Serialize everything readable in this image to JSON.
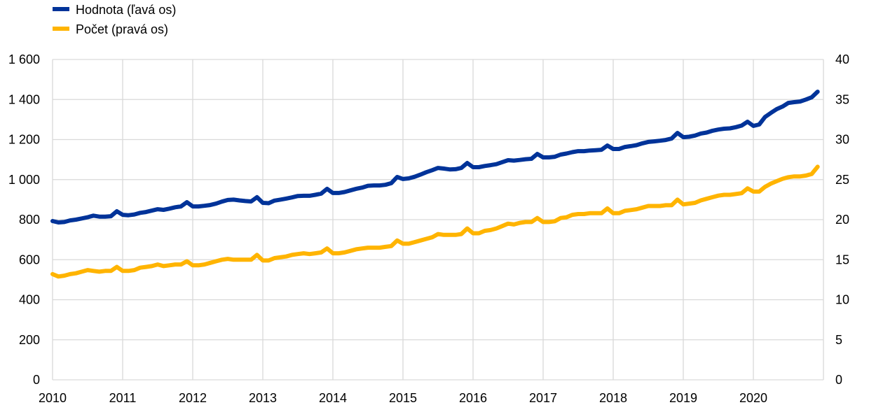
{
  "chart_data": {
    "type": "line",
    "x_start": "2010-01",
    "x_frequency": "monthly",
    "x_tick_labels": [
      "2010",
      "2011",
      "2012",
      "2013",
      "2014",
      "2015",
      "2016",
      "2017",
      "2018",
      "2019",
      "2020"
    ],
    "y_left": {
      "range": [
        0,
        1600
      ],
      "tick_labels": [
        "0",
        "200",
        "400",
        "600",
        "800",
        "1 000",
        "1 200",
        "1 400",
        "1 600"
      ],
      "tick_values": [
        0,
        200,
        400,
        600,
        800,
        1000,
        1200,
        1400,
        1600
      ]
    },
    "y_right": {
      "range": [
        0,
        40
      ],
      "tick_labels": [
        "0",
        "5",
        "10",
        "15",
        "20",
        "25",
        "30",
        "35",
        "40"
      ],
      "tick_values": [
        0,
        5,
        10,
        15,
        20,
        25,
        30,
        35,
        40
      ]
    },
    "grid": true,
    "legend_position": "top-left",
    "series": [
      {
        "name": "Hodnota (ľavá os)",
        "axis": "left",
        "color": "#003399",
        "values": [
          793,
          786,
          788,
          796,
          800,
          806,
          812,
          820,
          815,
          815,
          817,
          842,
          824,
          822,
          826,
          834,
          838,
          845,
          852,
          849,
          855,
          862,
          866,
          887,
          866,
          866,
          869,
          873,
          880,
          890,
          898,
          900,
          896,
          893,
          891,
          912,
          884,
          882,
          895,
          900,
          905,
          911,
          918,
          919,
          919,
          924,
          930,
          954,
          933,
          933,
          938,
          946,
          954,
          960,
          969,
          971,
          971,
          974,
          982,
          1013,
          1003,
          1006,
          1014,
          1025,
          1037,
          1047,
          1058,
          1055,
          1051,
          1052,
          1058,
          1083,
          1062,
          1062,
          1068,
          1072,
          1077,
          1087,
          1097,
          1095,
          1098,
          1102,
          1104,
          1128,
          1111,
          1111,
          1114,
          1125,
          1130,
          1137,
          1142,
          1142,
          1145,
          1147,
          1149,
          1170,
          1153,
          1153,
          1163,
          1167,
          1172,
          1181,
          1188,
          1191,
          1194,
          1198,
          1205,
          1233,
          1212,
          1214,
          1220,
          1230,
          1235,
          1244,
          1250,
          1254,
          1256,
          1262,
          1270,
          1289,
          1268,
          1275,
          1313,
          1333,
          1352,
          1365,
          1383,
          1387,
          1390,
          1400,
          1411,
          1439
        ]
      },
      {
        "name": "Počet (pravá os)",
        "axis": "right",
        "color": "#FFB400",
        "values": [
          13.2,
          12.9,
          13.0,
          13.2,
          13.3,
          13.5,
          13.7,
          13.6,
          13.5,
          13.6,
          13.6,
          14.1,
          13.6,
          13.6,
          13.7,
          14.0,
          14.1,
          14.2,
          14.4,
          14.2,
          14.3,
          14.4,
          14.4,
          14.8,
          14.3,
          14.3,
          14.4,
          14.6,
          14.8,
          15.0,
          15.1,
          15.0,
          15.0,
          15.0,
          15.0,
          15.6,
          14.9,
          14.9,
          15.2,
          15.3,
          15.4,
          15.6,
          15.7,
          15.8,
          15.7,
          15.8,
          15.9,
          16.4,
          15.8,
          15.8,
          15.9,
          16.1,
          16.3,
          16.4,
          16.5,
          16.5,
          16.5,
          16.6,
          16.7,
          17.4,
          17.0,
          17.0,
          17.2,
          17.4,
          17.6,
          17.8,
          18.2,
          18.1,
          18.1,
          18.1,
          18.2,
          18.9,
          18.3,
          18.3,
          18.6,
          18.7,
          18.9,
          19.2,
          19.5,
          19.4,
          19.6,
          19.7,
          19.7,
          20.2,
          19.7,
          19.7,
          19.8,
          20.2,
          20.3,
          20.6,
          20.7,
          20.7,
          20.8,
          20.8,
          20.8,
          21.4,
          20.8,
          20.8,
          21.1,
          21.2,
          21.3,
          21.5,
          21.7,
          21.7,
          21.7,
          21.8,
          21.8,
          22.5,
          21.9,
          22.0,
          22.1,
          22.4,
          22.6,
          22.8,
          23.0,
          23.1,
          23.1,
          23.2,
          23.3,
          23.9,
          23.5,
          23.5,
          24.1,
          24.5,
          24.8,
          25.1,
          25.3,
          25.4,
          25.4,
          25.5,
          25.7,
          26.6
        ]
      }
    ]
  }
}
